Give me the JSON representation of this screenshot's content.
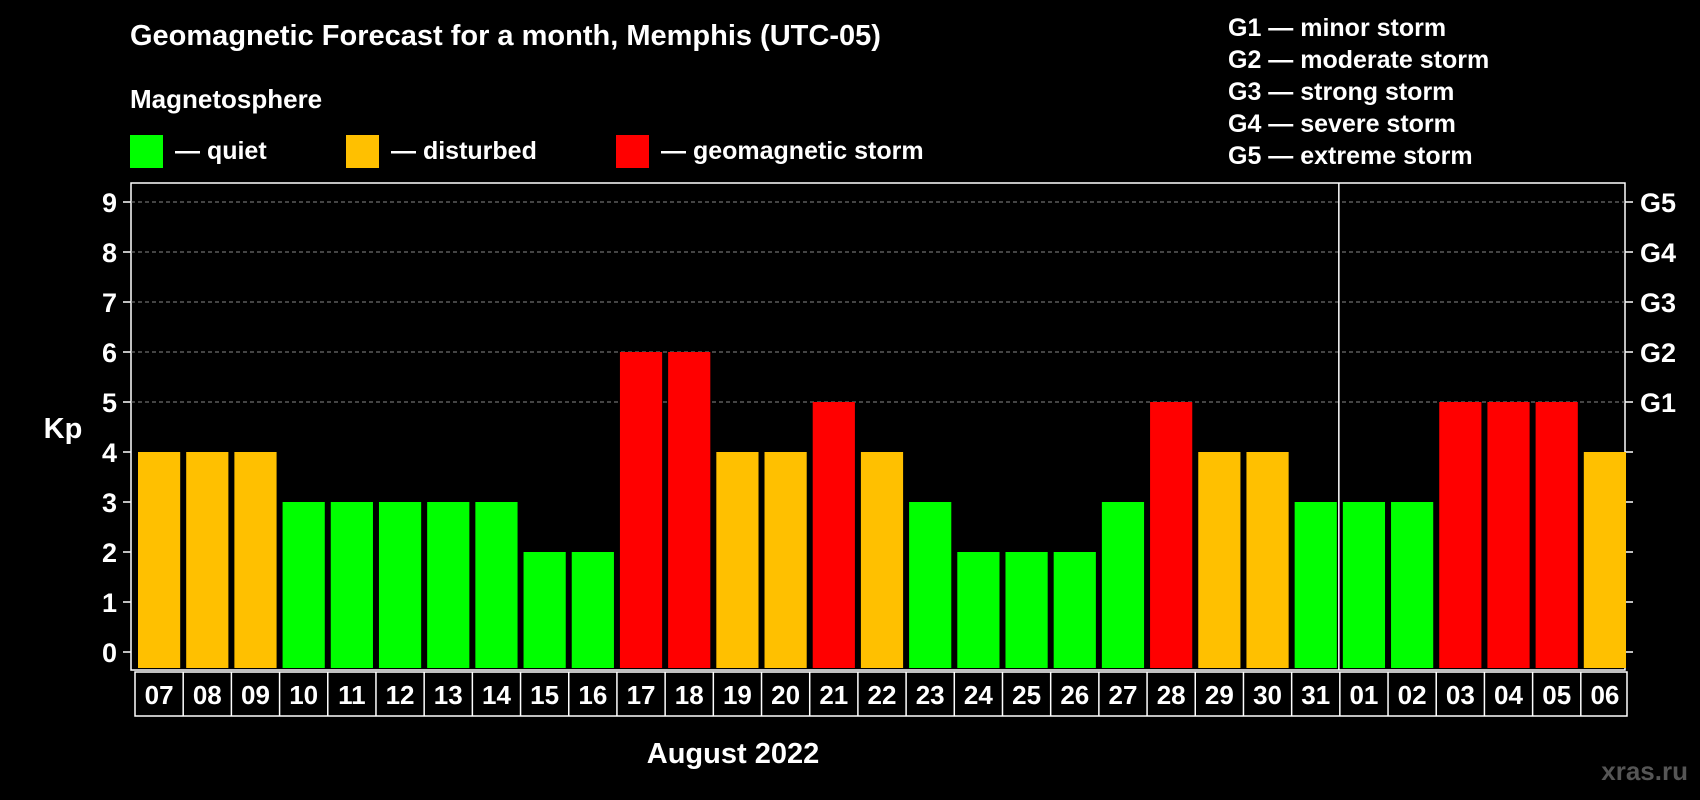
{
  "title": "Geomagnetic Forecast for a month, Memphis (UTC-05)",
  "magnetosphere_label": "Magnetosphere",
  "legend": [
    {
      "label": "— quiet",
      "color": "#00ff00"
    },
    {
      "label": "— disturbed",
      "color": "#ffc000"
    },
    {
      "label": "— geomagnetic storm",
      "color": "#ff0000"
    }
  ],
  "g_scale_legend": [
    "G1 — minor storm",
    "G2 — moderate storm",
    "G3 — strong storm",
    "G4 — severe storm",
    "G5 — extreme storm"
  ],
  "watermark": "xras.ru",
  "chart_data": {
    "type": "bar",
    "title": "Geomagnetic Forecast for a month, Memphis (UTC-05)",
    "xlabel": "August 2022",
    "ylabel": "Kp",
    "ylim": [
      0,
      9
    ],
    "y_ticks": [
      0,
      1,
      2,
      3,
      4,
      5,
      6,
      7,
      8,
      9
    ],
    "right_axis_labels": [
      {
        "value": 5,
        "label": "G1"
      },
      {
        "value": 6,
        "label": "G2"
      },
      {
        "value": 7,
        "label": "G3"
      },
      {
        "value": 8,
        "label": "G4"
      },
      {
        "value": 9,
        "label": "G5"
      }
    ],
    "month_boundary_after": "31",
    "grid": "dashed horizontal at Kp 5-9",
    "categories": [
      "07",
      "08",
      "09",
      "10",
      "11",
      "12",
      "13",
      "14",
      "15",
      "16",
      "17",
      "18",
      "19",
      "20",
      "21",
      "22",
      "23",
      "24",
      "25",
      "26",
      "27",
      "28",
      "29",
      "30",
      "31",
      "01",
      "02",
      "03",
      "04",
      "05",
      "06"
    ],
    "values": [
      4,
      4,
      4,
      3,
      3,
      3,
      3,
      3,
      2,
      2,
      6,
      6,
      4,
      4,
      5,
      4,
      3,
      2,
      2,
      2,
      3,
      5,
      4,
      4,
      3,
      3,
      3,
      5,
      5,
      5,
      4
    ],
    "colors": {
      "quiet": "#00ff00",
      "disturbed": "#ffc000",
      "storm": "#ff0000"
    }
  }
}
